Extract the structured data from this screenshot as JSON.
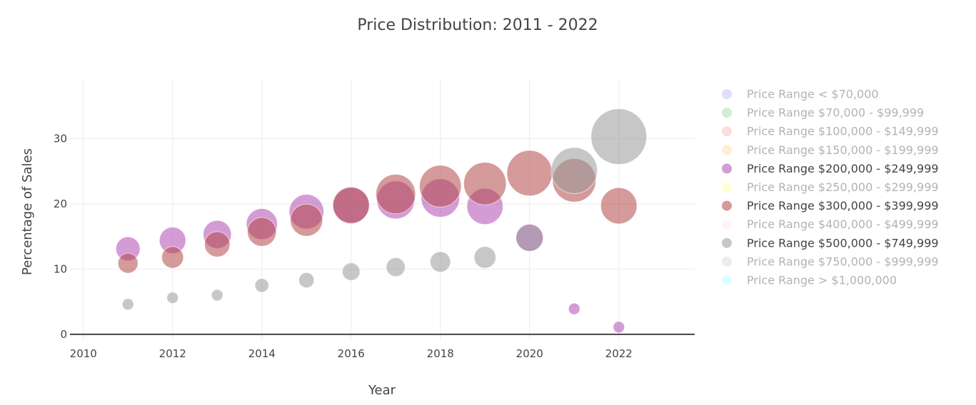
{
  "chart_data": {
    "type": "scatter",
    "subtype": "bubble",
    "title": "Price Distribution: 2011 - 2022",
    "xlabel": "Year",
    "ylabel": "Percentage of Sales",
    "xlim": [
      2009.7,
      2023.7
    ],
    "ylim": [
      -1,
      39
    ],
    "x_ticks": [
      2010,
      2012,
      2014,
      2016,
      2018,
      2020,
      2022
    ],
    "y_ticks": [
      0,
      10,
      20,
      30
    ],
    "grid": true,
    "legend_position": "right",
    "series": [
      {
        "name": "Price Range < $70,000",
        "color": "#6b6bff",
        "visible": false,
        "x": [],
        "y": []
      },
      {
        "name": "Price Range $70,000 - $99,999",
        "color": "#3aa53a",
        "visible": false,
        "x": [],
        "y": []
      },
      {
        "name": "Price Range $100,000 - $149,999",
        "color": "#f25f5f",
        "visible": false,
        "x": [],
        "y": []
      },
      {
        "name": "Price Range $150,000 - $199,999",
        "color": "#ffb13b",
        "visible": false,
        "x": [],
        "y": []
      },
      {
        "name": "Price Range $200,000 - $249,999",
        "color": "#b04ab0",
        "visible": true,
        "x": [
          2011,
          2012,
          2013,
          2014,
          2015,
          2016,
          2017,
          2018,
          2019,
          2020,
          2021,
          2022
        ],
        "y": [
          13.1,
          14.4,
          15.3,
          16.9,
          18.8,
          19.7,
          20.6,
          20.9,
          19.6,
          14.8,
          3.9,
          1.1
        ]
      },
      {
        "name": "Price Range $250,000 - $299,999",
        "color": "#ffff44",
        "visible": false,
        "x": [],
        "y": []
      },
      {
        "name": "Price Range $300,000 - $399,999",
        "color": "#b24747",
        "visible": true,
        "x": [
          2011,
          2012,
          2013,
          2014,
          2015,
          2016,
          2017,
          2018,
          2019,
          2020,
          2021,
          2022
        ],
        "y": [
          10.9,
          11.8,
          13.8,
          15.7,
          17.5,
          19.8,
          21.5,
          22.7,
          23.1,
          24.7,
          23.6,
          19.7
        ]
      },
      {
        "name": "Price Range $400,000 - $499,999",
        "color": "#ffd0dd",
        "visible": false,
        "x": [],
        "y": []
      },
      {
        "name": "Price Range $500,000 - $749,999",
        "color": "#999999",
        "visible": true,
        "x": [
          2011,
          2012,
          2013,
          2014,
          2015,
          2016,
          2017,
          2018,
          2019,
          2020,
          2021,
          2022
        ],
        "y": [
          4.6,
          5.6,
          6.0,
          7.5,
          8.3,
          9.6,
          10.3,
          11.1,
          11.8,
          14.8,
          25.1,
          30.3
        ]
      },
      {
        "name": "Price Range $750,000 - $999,999",
        "color": "#aaaaaa",
        "visible": false,
        "x": [],
        "y": []
      },
      {
        "name": "Price Range > $1,000,000",
        "color": "#66ffff",
        "visible": false,
        "x": [],
        "y": []
      }
    ]
  }
}
